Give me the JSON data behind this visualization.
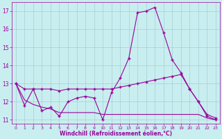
{
  "background_color": "#c8eef0",
  "grid_color": "#a8cdd4",
  "line_color": "#990099",
  "marker": "+",
  "xlabel": "Windchill (Refroidissement éolien,°C)",
  "xlabel_color": "#990099",
  "tick_color": "#990099",
  "x_hours": [
    0,
    1,
    2,
    3,
    4,
    5,
    6,
    7,
    8,
    9,
    10,
    11,
    12,
    13,
    14,
    15,
    16,
    17,
    18,
    19,
    20,
    21,
    22,
    23
  ],
  "line1": [
    13.0,
    11.8,
    12.7,
    11.5,
    11.7,
    11.2,
    12.0,
    12.2,
    12.3,
    12.2,
    11.0,
    12.5,
    13.3,
    14.4,
    16.9,
    17.0,
    17.2,
    15.8,
    14.3,
    13.6,
    12.7,
    12.0,
    11.2,
    11.0
  ],
  "line2": [
    13.0,
    12.7,
    12.7,
    12.7,
    12.7,
    12.6,
    12.7,
    12.7,
    12.7,
    12.7,
    12.7,
    12.7,
    12.8,
    12.9,
    13.0,
    13.1,
    13.2,
    13.3,
    13.4,
    13.5,
    12.7,
    12.0,
    11.3,
    11.1
  ],
  "line3": [
    13.0,
    12.1,
    11.85,
    11.7,
    11.6,
    11.4,
    11.4,
    11.4,
    11.4,
    11.4,
    11.3,
    11.3,
    11.3,
    11.3,
    11.3,
    11.3,
    11.3,
    11.3,
    11.3,
    11.3,
    11.3,
    11.3,
    11.1,
    11.0
  ],
  "ylim": [
    10.8,
    17.5
  ],
  "yticks": [
    11,
    12,
    13,
    14,
    15,
    16,
    17
  ],
  "xticks": [
    0,
    1,
    2,
    3,
    4,
    5,
    6,
    7,
    8,
    9,
    10,
    11,
    12,
    13,
    14,
    15,
    16,
    17,
    18,
    19,
    20,
    21,
    22,
    23
  ]
}
